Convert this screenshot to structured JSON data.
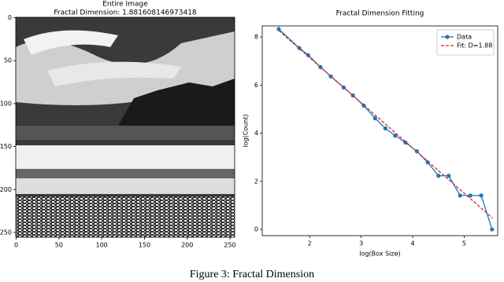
{
  "chart_data": [
    {
      "type": "image",
      "title": "Entire Image",
      "subtitle": "Fractal Dimension: 1.881608146973418",
      "xlim": [
        -0.5,
        255.5
      ],
      "ylim": [
        255.5,
        -0.5
      ],
      "xticks": [
        0,
        50,
        100,
        150,
        200,
        250
      ],
      "yticks": [
        0,
        50,
        100,
        150,
        200,
        250
      ]
    },
    {
      "type": "line",
      "title": "Fractal Dimension Fitting",
      "xlabel": "log(Box Size)",
      "ylabel": "log(Count)",
      "xlim": [
        1.08,
        5.65
      ],
      "ylim": [
        -0.26,
        8.46
      ],
      "xticks": [
        2,
        3,
        4,
        5
      ],
      "yticks": [
        0,
        2,
        4,
        6,
        8
      ],
      "grid": false,
      "legend": "upper right",
      "series": [
        {
          "name": "Data",
          "color": "#1f77b4",
          "style": "solid",
          "marker": true,
          "x": [
            1.4,
            1.8,
            1.97,
            2.21,
            2.41,
            2.66,
            2.84,
            3.05,
            3.27,
            3.47,
            3.66,
            3.86,
            4.08,
            4.29,
            4.5,
            4.7,
            4.92,
            5.12,
            5.33,
            5.54
          ],
          "values": [
            8.33,
            7.54,
            7.25,
            6.75,
            6.36,
            5.9,
            5.57,
            5.15,
            4.62,
            4.2,
            3.9,
            3.61,
            3.25,
            2.79,
            2.23,
            2.23,
            1.41,
            1.41,
            1.41,
            0.0
          ]
        },
        {
          "name": "Fit: D=1.88",
          "color": "#d62728",
          "style": "dashed",
          "marker": false,
          "x": [
            1.4,
            5.55
          ],
          "values": [
            8.27,
            0.47
          ]
        }
      ]
    }
  ],
  "caption": "Figure 3: Fractal Dimension"
}
